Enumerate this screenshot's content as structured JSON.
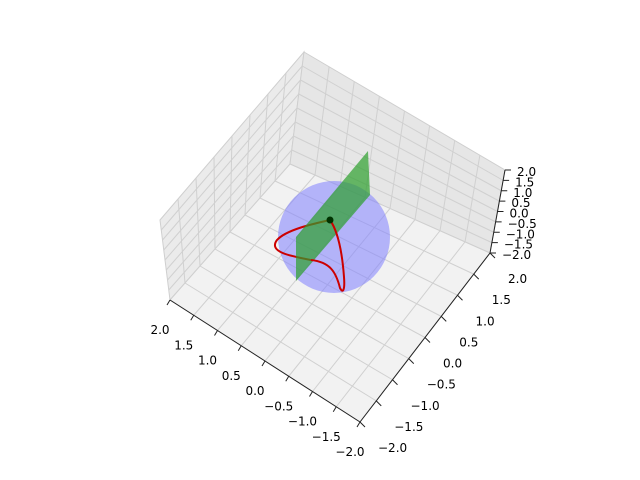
{
  "chart_data": {
    "type": "3d-surface-curve",
    "title": "",
    "xlabel": "",
    "ylabel": "",
    "zlabel": "",
    "xlim": [
      -2,
      2
    ],
    "ylim": [
      -2,
      2
    ],
    "zlim": [
      -2,
      2
    ],
    "grid": true,
    "x_ticks": [
      "2.0",
      "1.5",
      "1.0",
      "0.5",
      "0.0",
      "−0.5",
      "−1.0",
      "−1.5",
      "−2.0"
    ],
    "y_ticks": [
      "−2.0",
      "−1.5",
      "−1.0",
      "−0.5",
      "0.0",
      "0.5",
      "1.0",
      "1.5",
      "2.0"
    ],
    "z_ticks": [
      "2.0",
      "1.5",
      "1.0",
      "0.5",
      "0.0",
      "−0.5",
      "−1.0",
      "−1.5",
      "−2.0"
    ],
    "objects": [
      {
        "kind": "sphere",
        "center": [
          0,
          0,
          0
        ],
        "radius": 1,
        "color": "#8080ff",
        "alpha": 0.5
      },
      {
        "kind": "plane",
        "color": "#2ca02c",
        "alpha": 0.6
      },
      {
        "kind": "curve",
        "color": "#cc0000"
      },
      {
        "kind": "point",
        "color": "#003300"
      }
    ],
    "colors": {
      "pane": "#f2f2f2",
      "grid": "#d0d0d0",
      "sphere": "#8080ff",
      "plane": "#2ca02c",
      "curve": "#cc0000",
      "point": "#003300"
    }
  }
}
